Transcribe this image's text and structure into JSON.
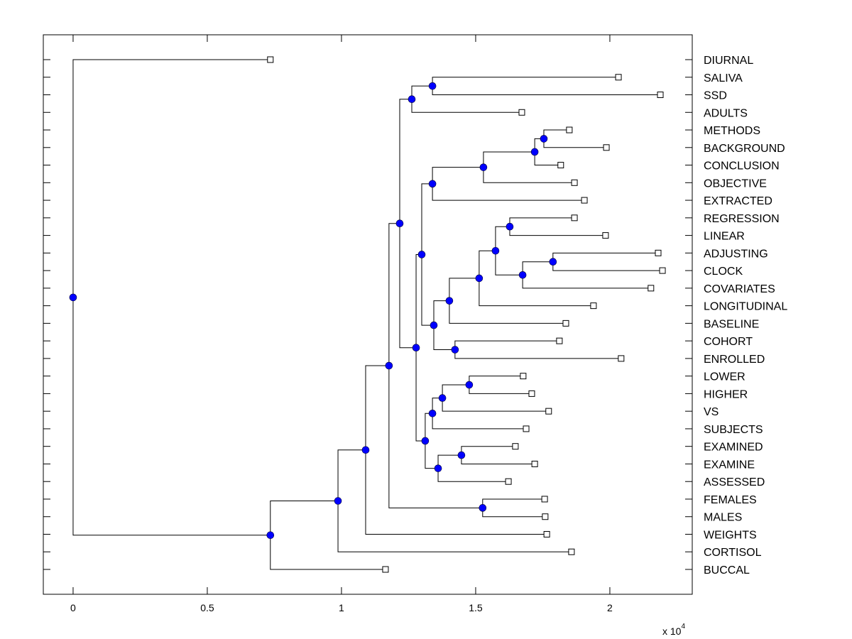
{
  "chart_data": {
    "type": "dendrogram",
    "title": "",
    "xlabel": "",
    "ylabel": "",
    "x_multiplier_label": "x 10",
    "x_multiplier_exponent": "4",
    "xlim": [
      -0.111,
      2.307
    ],
    "xticks": [
      0,
      0.5,
      1,
      1.5,
      2
    ],
    "xtick_labels": [
      "0",
      "0.5",
      "1",
      "1.5",
      "2"
    ],
    "grid": false,
    "leaf_order": [
      "DIURNAL",
      "SALIVA",
      "SSD",
      "ADULTS",
      "METHODS",
      "BACKGROUND",
      "CONCLUSION",
      "OBJECTIVE",
      "EXTRACTED",
      "REGRESSION",
      "LINEAR",
      "ADJUSTING",
      "CLOCK",
      "COVARIATES",
      "LONGITUDINAL",
      "BASELINE",
      "COHORT",
      "ENROLLED",
      "LOWER",
      "HIGHER",
      "VS",
      "SUBJECTS",
      "EXAMINED",
      "EXAMINE",
      "ASSESSED",
      "FEMALES",
      "MALES",
      "WEIGHTS",
      "CORTISOL",
      "BUCCAL"
    ],
    "node_color": "#0000ff",
    "line_color": "#000000",
    "tree": {
      "h": 0.0,
      "children": [
        {
          "label": "DIURNAL",
          "h": 0.735
        },
        {
          "h": 0.735,
          "children": [
            {
              "h": 0.987,
              "children": [
                {
                  "h": 1.09,
                  "children": [
                    {
                      "h": 1.177,
                      "children": [
                        {
                          "h": 1.217,
                          "children": [
                            {
                              "h": 1.262,
                              "children": [
                                {
                                  "h": 1.339,
                                  "children": [
                                    {
                                      "label": "SALIVA",
                                      "h": 2.032
                                    },
                                    {
                                      "label": "SSD",
                                      "h": 2.188
                                    }
                                  ]
                                },
                                {
                                  "label": "ADULTS",
                                  "h": 1.672
                                }
                              ]
                            },
                            {
                              "h": 1.278,
                              "children": [
                                {
                                  "h": 1.299,
                                  "children": [
                                    {
                                      "h": 1.339,
                                      "children": [
                                        {
                                          "h": 1.529,
                                          "children": [
                                            {
                                              "h": 1.72,
                                              "children": [
                                                {
                                                  "h": 1.754,
                                                  "children": [
                                                    {
                                                      "label": "METHODS",
                                                      "h": 1.849
                                                    },
                                                    {
                                                      "label": "BACKGROUND",
                                                      "h": 1.987
                                                    }
                                                  ]
                                                },
                                                {
                                                  "label": "CONCLUSION",
                                                  "h": 1.817
                                                }
                                              ]
                                            },
                                            {
                                              "label": "OBJECTIVE",
                                              "h": 1.868
                                            }
                                          ]
                                        },
                                        {
                                          "label": "EXTRACTED",
                                          "h": 1.905
                                        }
                                      ]
                                    },
                                    {
                                      "h": 1.344,
                                      "children": [
                                        {
                                          "h": 1.402,
                                          "children": [
                                            {
                                              "h": 1.513,
                                              "children": [
                                                {
                                                  "h": 1.574,
                                                  "children": [
                                                    {
                                                      "h": 1.627,
                                                      "children": [
                                                        {
                                                          "label": "REGRESSION",
                                                          "h": 1.868
                                                        },
                                                        {
                                                          "label": "LINEAR",
                                                          "h": 1.984
                                                        }
                                                      ]
                                                    },
                                                    {
                                                      "h": 1.675,
                                                      "children": [
                                                        {
                                                          "h": 1.788,
                                                          "children": [
                                                            {
                                                              "label": "ADJUSTING",
                                                              "h": 2.18
                                                            },
                                                            {
                                                              "label": "CLOCK",
                                                              "h": 2.196
                                                            }
                                                          ]
                                                        },
                                                        {
                                                          "label": "COVARIATES",
                                                          "h": 2.153
                                                        }
                                                      ]
                                                    }
                                                  ]
                                                },
                                                {
                                                  "label": "LONGITUDINAL",
                                                  "h": 1.939
                                                }
                                              ]
                                            },
                                            {
                                              "label": "BASELINE",
                                              "h": 1.836
                                            }
                                          ]
                                        },
                                        {
                                          "h": 1.423,
                                          "children": [
                                            {
                                              "label": "COHORT",
                                              "h": 1.812
                                            },
                                            {
                                              "label": "ENROLLED",
                                              "h": 2.042
                                            }
                                          ]
                                        }
                                      ]
                                    }
                                  ]
                                },
                                {
                                  "h": 1.312,
                                  "children": [
                                    {
                                      "h": 1.339,
                                      "children": [
                                        {
                                          "h": 1.376,
                                          "children": [
                                            {
                                              "h": 1.476,
                                              "children": [
                                                {
                                                  "label": "LOWER",
                                                  "h": 1.677
                                                },
                                                {
                                                  "label": "HIGHER",
                                                  "h": 1.709
                                                }
                                              ]
                                            },
                                            {
                                              "label": "VS",
                                              "h": 1.772
                                            }
                                          ]
                                        },
                                        {
                                          "label": "SUBJECTS",
                                          "h": 1.688
                                        }
                                      ]
                                    },
                                    {
                                      "h": 1.36,
                                      "children": [
                                        {
                                          "h": 1.447,
                                          "children": [
                                            {
                                              "label": "EXAMINED",
                                              "h": 1.648
                                            },
                                            {
                                              "label": "EXAMINE",
                                              "h": 1.72
                                            }
                                          ]
                                        },
                                        {
                                          "label": "ASSESSED",
                                          "h": 1.622
                                        }
                                      ]
                                    }
                                  ]
                                }
                              ]
                            }
                          ]
                        },
                        {
                          "h": 1.526,
                          "children": [
                            {
                              "label": "FEMALES",
                              "h": 1.757
                            },
                            {
                              "label": "MALES",
                              "h": 1.759
                            }
                          ]
                        }
                      ]
                    },
                    {
                      "label": "WEIGHTS",
                      "h": 1.765
                    }
                  ]
                },
                {
                  "label": "CORTISOL",
                  "h": 1.857
                }
              ]
            },
            {
              "label": "BUCCAL",
              "h": 1.164
            }
          ]
        }
      ]
    }
  }
}
